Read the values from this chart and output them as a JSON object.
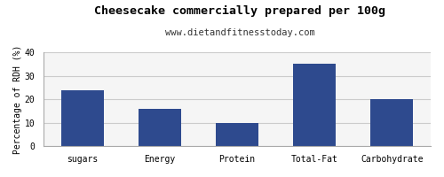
{
  "title": "Cheesecake commercially prepared per 100g",
  "subtitle": "www.dietandfitnesstoday.com",
  "categories": [
    "sugars",
    "Energy",
    "Protein",
    "Total-Fat",
    "Carbohydrate"
  ],
  "values": [
    24,
    16,
    10,
    35,
    20
  ],
  "bar_color": "#2e4a8e",
  "ylabel": "Percentage of RDH (%)",
  "ylim": [
    0,
    40
  ],
  "yticks": [
    0,
    10,
    20,
    30,
    40
  ],
  "background_color": "#ffffff",
  "plot_bg_color": "#f5f5f5",
  "title_fontsize": 9.5,
  "subtitle_fontsize": 7.5,
  "ylabel_fontsize": 7,
  "tick_fontsize": 7,
  "grid_color": "#cccccc",
  "border_color": "#aaaaaa"
}
